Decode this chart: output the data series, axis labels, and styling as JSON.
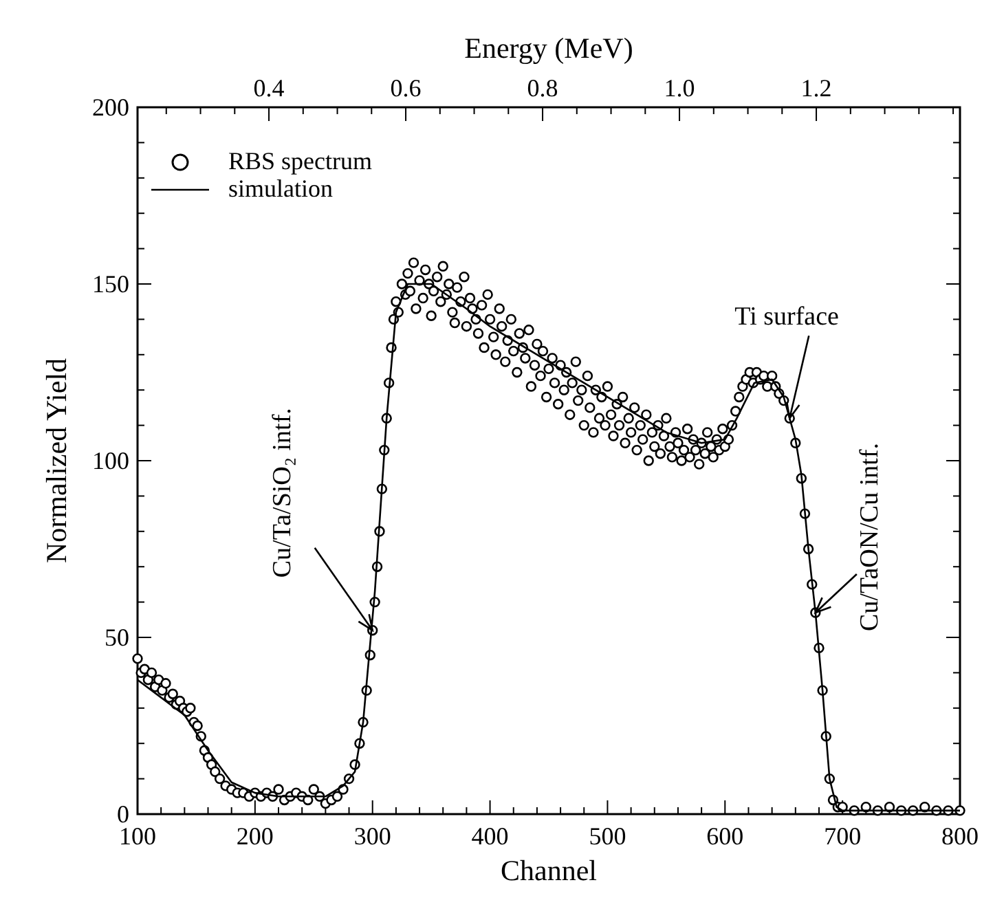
{
  "chart_data": {
    "type": "scatter",
    "xlabel": "Channel",
    "ylabel": "Normalized Yield",
    "x2label": "Energy (MeV)",
    "xlim": [
      100,
      800
    ],
    "ylim": [
      0,
      200
    ],
    "x2lim": [
      0.208,
      1.41
    ],
    "xticks": [
      100,
      {
        "value": 120,
        "label": null
      },
      {
        "value": 140,
        "label": null
      },
      {
        "value": 160,
        "label": null
      },
      {
        "value": 180,
        "label": null
      },
      200,
      {
        "value": 220,
        "label": null
      },
      {
        "value": 240,
        "label": null
      },
      {
        "value": 260,
        "label": null
      },
      {
        "value": 280,
        "label": null
      },
      300,
      {
        "value": 320,
        "label": null
      },
      {
        "value": 340,
        "label": null
      },
      {
        "value": 360,
        "label": null
      },
      {
        "value": 380,
        "label": null
      },
      400,
      {
        "value": 420,
        "label": null
      },
      {
        "value": 440,
        "label": null
      },
      {
        "value": 460,
        "label": null
      },
      {
        "value": 480,
        "label": null
      },
      500,
      {
        "value": 520,
        "label": null
      },
      {
        "value": 540,
        "label": null
      },
      {
        "value": 560,
        "label": null
      },
      {
        "value": 580,
        "label": null
      },
      600,
      {
        "value": 620,
        "label": null
      },
      {
        "value": 640,
        "label": null
      },
      {
        "value": 660,
        "label": null
      },
      {
        "value": 680,
        "label": null
      },
      700,
      {
        "value": 720,
        "label": null
      },
      {
        "value": 740,
        "label": null
      },
      {
        "value": 760,
        "label": null
      },
      {
        "value": 780,
        "label": null
      },
      800
    ],
    "yticks": [
      0,
      {
        "value": 10,
        "label": null
      },
      {
        "value": 20,
        "label": null
      },
      {
        "value": 30,
        "label": null
      },
      {
        "value": 40,
        "label": null
      },
      50,
      {
        "value": 60,
        "label": null
      },
      {
        "value": 70,
        "label": null
      },
      {
        "value": 80,
        "label": null
      },
      {
        "value": 90,
        "label": null
      },
      100,
      {
        "value": 110,
        "label": null
      },
      {
        "value": 120,
        "label": null
      },
      {
        "value": 130,
        "label": null
      },
      {
        "value": 140,
        "label": null
      },
      150,
      {
        "value": 160,
        "label": null
      },
      {
        "value": 170,
        "label": null
      },
      {
        "value": 180,
        "label": null
      },
      {
        "value": 190,
        "label": null
      },
      200
    ],
    "x2ticks": [
      {
        "value": 0.25,
        "label": null
      },
      {
        "value": 0.3,
        "label": null
      },
      {
        "value": 0.35,
        "label": null
      },
      {
        "value": 0.4,
        "label": "0.4"
      },
      {
        "value": 0.45,
        "label": null
      },
      {
        "value": 0.5,
        "label": null
      },
      {
        "value": 0.55,
        "label": null
      },
      {
        "value": 0.6,
        "label": "0.6"
      },
      {
        "value": 0.65,
        "label": null
      },
      {
        "value": 0.7,
        "label": null
      },
      {
        "value": 0.75,
        "label": null
      },
      {
        "value": 0.8,
        "label": "0.8"
      },
      {
        "value": 0.85,
        "label": null
      },
      {
        "value": 0.9,
        "label": null
      },
      {
        "value": 0.95,
        "label": null
      },
      {
        "value": 1.0,
        "label": "1.0"
      },
      {
        "value": 1.05,
        "label": null
      },
      {
        "value": 1.1,
        "label": null
      },
      {
        "value": 1.15,
        "label": null
      },
      {
        "value": 1.2,
        "label": "1.2"
      },
      {
        "value": 1.25,
        "label": null
      },
      {
        "value": 1.3,
        "label": null
      },
      {
        "value": 1.35,
        "label": null
      },
      {
        "value": 1.4,
        "label": null
      }
    ],
    "legend": "top left",
    "grid": false,
    "series": [
      {
        "name": "RBS spectrum",
        "type": "scatter",
        "marker": "circle",
        "color": "#000000",
        "x": [
          100,
          103,
          106,
          109,
          112,
          115,
          118,
          121,
          124,
          127,
          130,
          133,
          136,
          139,
          142,
          145,
          148,
          151,
          154,
          157,
          160,
          163,
          166,
          170,
          175,
          180,
          185,
          190,
          195,
          200,
          205,
          210,
          215,
          220,
          225,
          230,
          235,
          240,
          245,
          250,
          255,
          260,
          265,
          270,
          275,
          280,
          285,
          289,
          292,
          295,
          298,
          300,
          302,
          304,
          306,
          308,
          310,
          312,
          314,
          316,
          318,
          320,
          322,
          325,
          328,
          330,
          332,
          335,
          337,
          340,
          343,
          345,
          348,
          350,
          352,
          355,
          358,
          360,
          363,
          365,
          368,
          370,
          372,
          375,
          378,
          380,
          383,
          385,
          388,
          390,
          393,
          395,
          398,
          400,
          403,
          405,
          408,
          410,
          413,
          415,
          418,
          420,
          423,
          425,
          428,
          430,
          433,
          435,
          438,
          440,
          443,
          445,
          448,
          450,
          453,
          455,
          458,
          460,
          463,
          465,
          468,
          470,
          473,
          475,
          478,
          480,
          483,
          485,
          488,
          490,
          493,
          495,
          498,
          500,
          503,
          505,
          508,
          510,
          513,
          515,
          518,
          520,
          523,
          525,
          528,
          530,
          533,
          535,
          538,
          540,
          543,
          545,
          548,
          550,
          553,
          555,
          558,
          560,
          563,
          565,
          568,
          570,
          573,
          575,
          578,
          580,
          583,
          585,
          588,
          590,
          593,
          595,
          598,
          600,
          603,
          606,
          609,
          612,
          615,
          618,
          621,
          624,
          627,
          630,
          633,
          636,
          640,
          643,
          646,
          650,
          655,
          660,
          665,
          668,
          671,
          674,
          677,
          680,
          683,
          686,
          689,
          692,
          696,
          700,
          710,
          720,
          730,
          740,
          750,
          760,
          770,
          780,
          790,
          800
        ],
        "values": [
          44,
          40,
          41,
          38,
          40,
          36,
          38,
          35,
          37,
          33,
          34,
          31,
          32,
          30,
          29,
          30,
          26,
          25,
          22,
          18,
          16,
          14,
          12,
          10,
          8,
          7,
          6,
          6,
          5,
          6,
          5,
          6,
          5,
          7,
          4,
          5,
          6,
          5,
          4,
          7,
          5,
          3,
          4,
          5,
          7,
          10,
          14,
          20,
          26,
          35,
          45,
          52,
          60,
          70,
          80,
          92,
          103,
          112,
          122,
          132,
          140,
          145,
          142,
          150,
          147,
          153,
          148,
          156,
          143,
          151,
          146,
          154,
          150,
          141,
          148,
          152,
          145,
          155,
          147,
          150,
          142,
          139,
          149,
          145,
          152,
          138,
          146,
          143,
          140,
          136,
          144,
          132,
          147,
          140,
          135,
          130,
          143,
          138,
          128,
          134,
          140,
          131,
          125,
          136,
          132,
          129,
          137,
          121,
          127,
          133,
          124,
          131,
          118,
          126,
          129,
          122,
          116,
          127,
          120,
          125,
          113,
          122,
          128,
          117,
          120,
          110,
          124,
          115,
          108,
          120,
          112,
          118,
          110,
          121,
          113,
          107,
          116,
          110,
          118,
          105,
          112,
          108,
          115,
          103,
          110,
          106,
          113,
          100,
          108,
          104,
          110,
          102,
          107,
          112,
          104,
          101,
          108,
          105,
          100,
          103,
          109,
          101,
          106,
          103,
          99,
          105,
          102,
          108,
          104,
          101,
          106,
          103,
          109,
          104,
          106,
          110,
          114,
          118,
          121,
          123,
          125,
          122,
          125,
          123,
          124,
          121,
          124,
          121,
          119,
          117,
          112,
          105,
          95,
          85,
          75,
          65,
          57,
          47,
          35,
          22,
          10,
          4,
          2,
          2,
          1,
          2,
          1,
          2,
          1,
          1,
          2,
          1,
          1,
          1
        ]
      },
      {
        "name": "simulation",
        "type": "line",
        "marker": "none",
        "line_style": "solid",
        "color": "#000000",
        "x": [
          100,
          120,
          140,
          160,
          180,
          200,
          220,
          240,
          260,
          275,
          285,
          292,
          302,
          312,
          320,
          330,
          350,
          380,
          400,
          450,
          500,
          550,
          580,
          600,
          610,
          625,
          640,
          650,
          660,
          665,
          671,
          677,
          683,
          689,
          695,
          700,
          800
        ],
        "values": [
          38,
          33,
          28,
          18,
          9,
          6,
          5,
          5,
          5,
          8,
          12,
          26,
          63,
          112,
          142,
          150,
          150,
          143,
          138,
          128,
          118,
          108,
          105,
          106,
          112,
          122,
          123,
          118,
          106,
          96,
          75,
          57,
          35,
          10,
          2,
          1,
          1
        ]
      }
    ],
    "annotations": [
      {
        "text": "Ti surface",
        "x": 655,
        "y": 112
      },
      {
        "text": "Cu/Ta/SiO₂ intf.",
        "x": 300,
        "y": 52
      },
      {
        "text": "Cu/TaON/Cu intf.",
        "x": 677,
        "y": 57
      }
    ]
  }
}
